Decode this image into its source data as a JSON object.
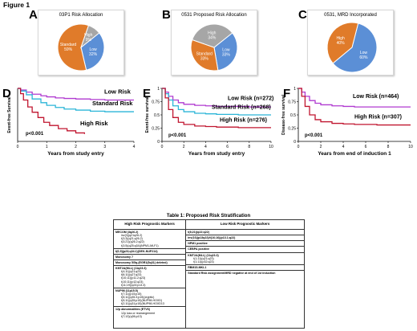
{
  "figure_title": "Figure 1",
  "panels": {
    "A": {
      "letter": "A",
      "title": "03P1 Risk Allocation"
    },
    "B": {
      "letter": "B",
      "title": "0531 Proposed Risk Allocation"
    },
    "C": {
      "letter": "C",
      "title": "0531, MRD Incorporated"
    },
    "D": {
      "letter": "D",
      "ylabel": "Event-free Survival",
      "xlabel": "Years from study entry",
      "pvalue": "p<0.001",
      "labels": [
        "Low Risk",
        "Standard Risk",
        "High Risk"
      ],
      "ticks": [
        "0",
        "1",
        "2",
        "3",
        "4"
      ]
    },
    "E": {
      "letter": "E",
      "ylabel": "Event-free survival",
      "xlabel": "Years from study entry",
      "pvalue": "p<0.001",
      "labels": [
        "Low Risk  (n=272)",
        "Standard Risk (n=268)",
        "High Risk (n=276)"
      ],
      "yticks": [
        "1",
        "0.75",
        "0.5",
        "0.25",
        "0"
      ],
      "xticks": [
        "0",
        "2",
        "4",
        "6",
        "8",
        "10"
      ]
    },
    "F": {
      "letter": "F",
      "ylabel": "Disease-free survival",
      "xlabel": "Years from end of induction 1",
      "pvalue": "p<0.001",
      "labels": [
        "Low Risk (n=464)",
        "High Risk (n=307)"
      ],
      "yticks": [
        "1",
        "0.75",
        "0.5",
        "0.25",
        "0"
      ],
      "xticks": [
        "0",
        "2",
        "4",
        "6",
        "8",
        "10"
      ]
    }
  },
  "chart_data": [
    {
      "type": "pie",
      "panel": "A",
      "title": "03P1 Risk Allocation",
      "slices": [
        {
          "label": "Low",
          "value": 32,
          "pct": "32%",
          "color": "#5b8fd6"
        },
        {
          "label": "Standard",
          "value": 59,
          "pct": "59%",
          "color": "#e07b2a"
        },
        {
          "label": "High",
          "value": 9,
          "pct": "9%",
          "color": "#a6a6a6"
        }
      ]
    },
    {
      "type": "pie",
      "panel": "B",
      "title": "0531 Proposed Risk Allocation",
      "slices": [
        {
          "label": "Low",
          "value": 33,
          "pct": "33%",
          "color": "#5b8fd6"
        },
        {
          "label": "Standard",
          "value": 33,
          "pct": "33%",
          "color": "#e07b2a"
        },
        {
          "label": "High",
          "value": 34,
          "pct": "34%",
          "color": "#a6a6a6"
        }
      ]
    },
    {
      "type": "pie",
      "panel": "C",
      "title": "0531, MRD Incorporated",
      "slices": [
        {
          "label": "Low",
          "value": 60,
          "pct": "60%",
          "color": "#5b8fd6"
        },
        {
          "label": "High",
          "value": 40,
          "pct": "40%",
          "color": "#e07b2a"
        }
      ]
    },
    {
      "type": "line",
      "panel": "D",
      "xlim": [
        0,
        4
      ],
      "ylim": [
        0,
        1
      ],
      "series": [
        {
          "name": "Low Risk",
          "color": "#b03ad0",
          "x": [
            0,
            0.1,
            0.3,
            0.5,
            0.8,
            1.0,
            1.3,
            1.6,
            2.0,
            2.5,
            3.0,
            3.5,
            4.0
          ],
          "y": [
            1,
            0.97,
            0.93,
            0.89,
            0.86,
            0.84,
            0.82,
            0.81,
            0.8,
            0.79,
            0.78,
            0.78,
            0.78
          ]
        },
        {
          "name": "Standard Risk",
          "color": "#2bb5d8",
          "x": [
            0,
            0.1,
            0.3,
            0.5,
            0.8,
            1.0,
            1.3,
            1.6,
            2.0,
            2.5,
            3.0,
            3.5,
            4.0
          ],
          "y": [
            1,
            0.95,
            0.88,
            0.8,
            0.73,
            0.68,
            0.64,
            0.61,
            0.59,
            0.57,
            0.56,
            0.56,
            0.56
          ]
        },
        {
          "name": "High Risk",
          "color": "#c0152f",
          "x": [
            0,
            0.1,
            0.2,
            0.35,
            0.5,
            0.7,
            0.9,
            1.1,
            1.4,
            1.7,
            2.0,
            2.3
          ],
          "y": [
            1,
            0.9,
            0.78,
            0.65,
            0.55,
            0.45,
            0.36,
            0.3,
            0.24,
            0.2,
            0.16,
            0.14
          ]
        }
      ]
    },
    {
      "type": "line",
      "panel": "E",
      "xlim": [
        0,
        10
      ],
      "ylim": [
        0,
        1
      ],
      "series": [
        {
          "name": "Low Risk  (n=272)",
          "color": "#b03ad0",
          "x": [
            0,
            0.3,
            0.6,
            1,
            1.5,
            2,
            3,
            4,
            5,
            6,
            7,
            8,
            9,
            10
          ],
          "y": [
            1,
            0.93,
            0.85,
            0.78,
            0.73,
            0.7,
            0.68,
            0.67,
            0.66,
            0.66,
            0.66,
            0.65,
            0.65,
            0.65
          ]
        },
        {
          "name": "Standard Risk (n=268)",
          "color": "#2bb5d8",
          "x": [
            0,
            0.3,
            0.6,
            1,
            1.5,
            2,
            3,
            4,
            5,
            6,
            7,
            8,
            9,
            10
          ],
          "y": [
            1,
            0.9,
            0.78,
            0.67,
            0.6,
            0.56,
            0.53,
            0.52,
            0.51,
            0.51,
            0.5,
            0.5,
            0.5,
            0.5
          ]
        },
        {
          "name": "High Risk (n=276)",
          "color": "#c0152f",
          "x": [
            0,
            0.3,
            0.6,
            1,
            1.5,
            2,
            3,
            4,
            5,
            6,
            7,
            8,
            9,
            10
          ],
          "y": [
            1,
            0.82,
            0.6,
            0.45,
            0.36,
            0.32,
            0.29,
            0.28,
            0.27,
            0.27,
            0.26,
            0.26,
            0.26,
            0.26
          ]
        }
      ]
    },
    {
      "type": "line",
      "panel": "F",
      "xlim": [
        0,
        10
      ],
      "ylim": [
        0,
        1
      ],
      "series": [
        {
          "name": "Low Risk (n=464)",
          "color": "#b03ad0",
          "x": [
            0,
            0.3,
            0.6,
            1,
            1.5,
            2,
            3,
            4,
            5,
            6,
            7,
            8,
            9,
            10
          ],
          "y": [
            1,
            0.93,
            0.85,
            0.77,
            0.72,
            0.69,
            0.67,
            0.66,
            0.65,
            0.65,
            0.65,
            0.65,
            0.65,
            0.65
          ]
        },
        {
          "name": "High Risk (n=307)",
          "color": "#c0152f",
          "x": [
            0,
            0.3,
            0.6,
            1,
            1.5,
            2,
            3,
            4,
            5,
            6,
            7,
            8,
            9,
            10
          ],
          "y": [
            1,
            0.85,
            0.66,
            0.5,
            0.41,
            0.37,
            0.34,
            0.33,
            0.32,
            0.32,
            0.31,
            0.31,
            0.31,
            0.31
          ]
        }
      ]
    }
  ],
  "table": {
    "caption": "Table 1: Proposed Risk Stratification",
    "header_high": "High Risk Prognostic Markers",
    "header_low": "Low Risk Prognostic Markers",
    "high": {
      "mecom": "MECOM (3q26.2)",
      "mecom_items": [
        "inv(3)(q21q26.2)",
        "t(3;3)(q21;q26.2)",
        "t(3;21)(q26.2;q22)",
        "t(3;5)(q25;q34)(NPM1-MLF1)"
      ],
      "t6_9": "t(6;9)(p23;q34.1)(DEK-NUP214)",
      "mono7": "Monosomy 7",
      "mono5": "Monosomy 5/5q-(EGR1(5q31) deleted)",
      "kmt2a": "KMT2A(MLL) (11q23.3)",
      "kmt2a_items": [
        "t(4;11)(q21;q23)",
        "t(6;11)(q27;q23)",
        "t(10;11)(p11.2;q23)",
        "t(10;11)(p12;q23)",
        "t(11;19)(q23;p13.3)"
      ],
      "nup98": "NUP98 (11p15.5)",
      "nup98_items": [
        "t(7;11)(p15;p15)",
        "t(5;11)(q35.3;p15)(cryptic)",
        "t(5;11)(q35;p15)(NUP98-HOXD)",
        "t(2;11)(q31;p15)(NUP98-HOXD13"
      ],
      "p12": "12p abnormalities (ETV6)",
      "p12_items": [
        "12p loss or rearrangement",
        "t(7;12)(q36;p13)"
      ]
    },
    "low": {
      "t8_21": "t(8;21)(q22;q22)",
      "inv16": "inv(16)(p13q22)/t(16;16)(p13.1;q22)",
      "npm1": "NPM1 positive",
      "cebpa": "CEBPA positive",
      "kmt2a": "KMT2A(MLL) (11q23.3)",
      "kmt2a_items": [
        "t(1;11)(q21;q23)",
        "t(1;11)(p32;q23)"
      ],
      "rbm15": "RBM15-MKL1",
      "std": "Standard Risk assignment/MRD negative at end of 1st induction"
    }
  }
}
